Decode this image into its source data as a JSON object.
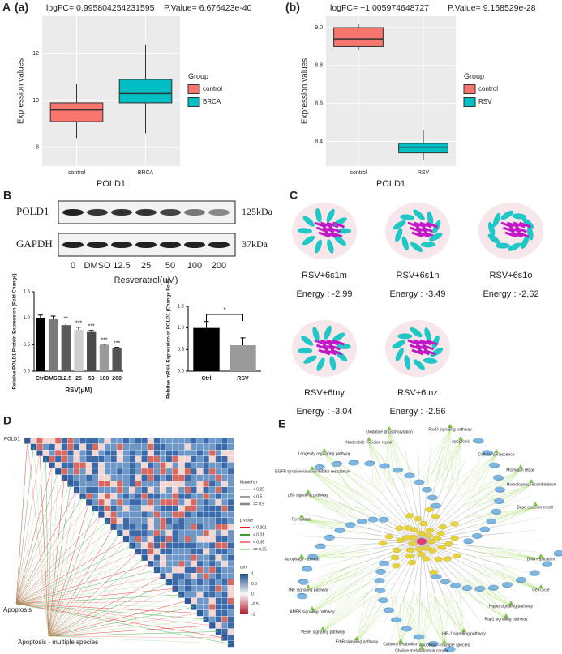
{
  "panel_letters": {
    "A": "A",
    "a": "(a)",
    "b": "(b)",
    "B": "B",
    "C": "C",
    "D": "D",
    "E": "E"
  },
  "chart_data": [
    {
      "type": "box",
      "title": "logFC= 0.995804254231595",
      "subtitle": "P.Value= 6.676423e-40",
      "x_label": "POLD1",
      "y_label": "Expression values",
      "legend_title": "Group",
      "categories": [
        "control",
        "BRCA"
      ],
      "boxes": [
        {
          "name": "control",
          "color": "#f8766d",
          "whisker_low": 8.4,
          "q1": 9.1,
          "median": 9.6,
          "q3": 9.9,
          "whisker_high": 10.7
        },
        {
          "name": "BRCA",
          "color": "#00bfc4",
          "whisker_low": 8.6,
          "q1": 9.9,
          "median": 10.3,
          "q3": 10.9,
          "whisker_high": 12.4
        }
      ],
      "ylim": [
        7.2,
        13.6
      ],
      "yticks": [
        8,
        10,
        12
      ],
      "grid": true
    },
    {
      "type": "box",
      "title": "logFC= −1.005974648727",
      "subtitle": "P.Value= 9.158529e-28",
      "x_label": "POLD1",
      "y_label": "Expression values",
      "legend_title": "Group",
      "categories": [
        "control",
        "RSV"
      ],
      "boxes": [
        {
          "name": "control",
          "color": "#f8766d",
          "whisker_low": 8.88,
          "q1": 8.9,
          "median": 8.94,
          "q3": 9.0,
          "whisker_high": 9.02
        },
        {
          "name": "RSV",
          "color": "#00bfc4",
          "whisker_low": 8.3,
          "q1": 8.34,
          "median": 8.37,
          "q3": 8.39,
          "whisker_high": 8.46
        }
      ],
      "ylim": [
        8.27,
        9.06
      ],
      "yticks": [
        8.4,
        8.6,
        8.8,
        {
          "value": 9,
          "label": "9.0"
        }
      ],
      "grid": true
    },
    {
      "type": "bar",
      "x_label": "RSV(μM)",
      "y_label": "Relative POLD1 Protein Expression (Fold Change)",
      "categories": [
        "Ctrl",
        "DMSO",
        "12.5",
        "25",
        "50",
        "100",
        "200"
      ],
      "values": [
        1.0,
        0.98,
        0.87,
        0.78,
        0.74,
        0.5,
        0.43
      ],
      "errors": [
        0.06,
        0.06,
        0.04,
        0.05,
        0.03,
        0.01,
        0.02
      ],
      "annotations": [
        null,
        null,
        "**",
        "***",
        "***",
        "***",
        "***"
      ],
      "colors": [
        "#000000",
        "#7a7a7a",
        "#5a5a5a",
        "#cfcfcf",
        "#4a4a4a",
        "#9a9a9a",
        "#555555"
      ],
      "ylim": [
        0,
        1.5
      ],
      "yticks": [
        {
          "value": 0,
          "label": "0.0"
        },
        0.5,
        {
          "value": 1,
          "label": "1.0"
        },
        1.5
      ]
    },
    {
      "type": "bar",
      "y_label": "Relative mRNA Expression of POLD1 (Change Fold)",
      "categories": [
        "Ctrl",
        "RSV"
      ],
      "values": [
        1.0,
        0.6
      ],
      "errors": [
        0.15,
        0.17
      ],
      "bracket": "*",
      "colors": [
        "#000000",
        "#9a9a9a"
      ],
      "ylim": [
        0,
        1.5
      ],
      "yticks": [
        {
          "value": 0,
          "label": "0.0"
        },
        0.5,
        {
          "value": 1,
          "label": "1.0"
        },
        1.5
      ]
    }
  ],
  "blot": {
    "rows": [
      "POLD1",
      "GAPDH"
    ],
    "sizes": [
      "125kDa",
      "37kDa"
    ],
    "lanes": [
      "0",
      "DMSO",
      "12.5",
      "25",
      "50",
      "100",
      "200"
    ],
    "treatment": "Resveratrol(uM)"
  },
  "docking": [
    {
      "name": "RSV+6s1m",
      "energy": "Energy : -2.99"
    },
    {
      "name": "RSV+6s1n",
      "energy": "Energy : -3.49"
    },
    {
      "name": "RSV+6s1o",
      "energy": "Energy : -2.62"
    },
    {
      "name": "RSV+6tny",
      "energy": "Energy : -3.04"
    },
    {
      "name": "RSV+6tnz",
      "energy": "Energy : -2.56"
    }
  ],
  "heatmap": {
    "gene": "POLD1",
    "groups": [
      "Apoptosis",
      "Apoptosis - multiple species"
    ],
    "mantel_title": "Mantel's r",
    "mantel_levels": [
      "< 0.25",
      "< 0.5",
      ">= 0.5"
    ],
    "p_title": "p value",
    "p_levels": [
      "< 0.001",
      "< 0.01",
      "< 0.05",
      ">= 0.05"
    ],
    "p_colors": [
      "#e41a1c",
      "#33a02c",
      "#f08080",
      "#b0e0a0"
    ],
    "corr_title": "corr",
    "corr_ticks": [
      "1",
      "0.5",
      "0",
      "-0.5",
      "-1"
    ]
  },
  "network": {
    "pathways": [
      "Oxidative phosphorylation",
      "FoxO signaling pathway",
      "Nucleotide excision repair",
      "Apoptosis",
      "Longevity regulating pathway",
      "Cellular senescence",
      "EGFR tyrosine kinase inhibitor resistance",
      "Mismatch repair",
      "Homologous recombination",
      "p53 signaling pathway",
      "Base excision repair",
      "Ferroptosis",
      "Autophagy - animal",
      "DNA replication",
      "Cell cycle",
      "TNF signaling pathway",
      "Hippo signaling pathway",
      "AMPK signaling pathway",
      "Rap1 signaling pathway",
      "VEGF signaling pathway",
      "HIF-1 signaling pathway",
      "ErbB signaling pathway",
      "Apoptosis - multiple species",
      "Carbon metabolism",
      "Choline metabolism in cancer"
    ]
  }
}
